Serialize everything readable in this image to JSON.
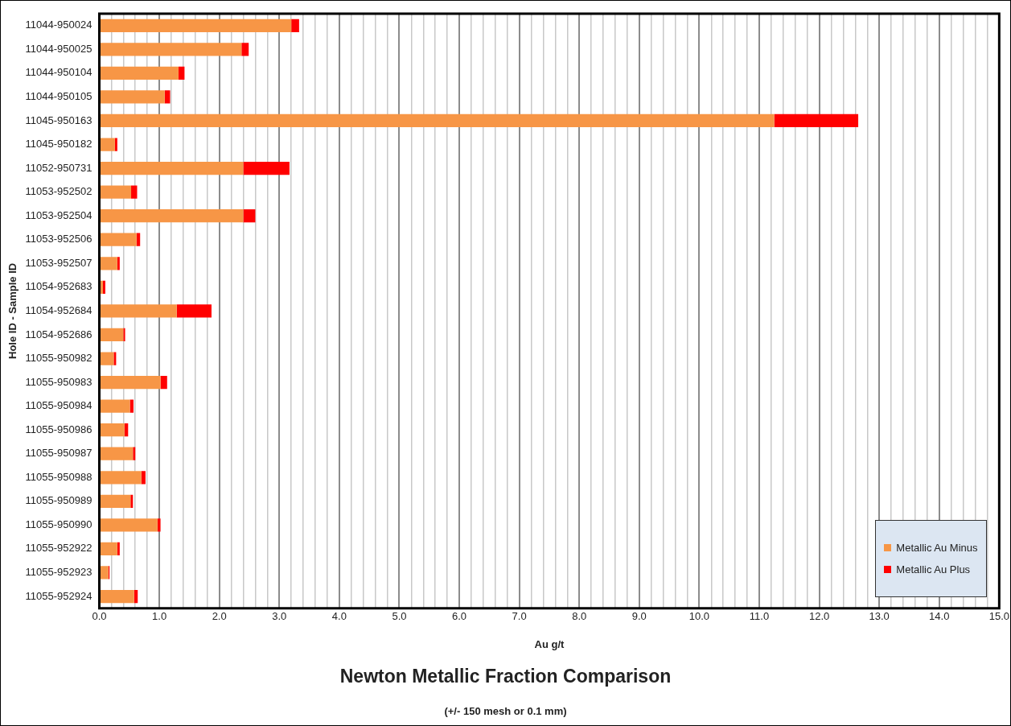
{
  "chart_data": {
    "type": "bar",
    "orientation": "horizontal",
    "stacked": true,
    "title": "Newton Metallic Fraction Comparison",
    "subtitle": "(+/- 150 mesh or 0.1 mm)",
    "xlabel": "Au g/t",
    "ylabel": "Hole ID - Sample ID",
    "categories": [
      "11044-950024",
      "11044-950025",
      "11044-950104",
      "11044-950105",
      "11045-950163",
      "11045-950182",
      "11052-950731",
      "11053-952502",
      "11053-952504",
      "11053-952506",
      "11053-952507",
      "11054-952683",
      "11054-952684",
      "11054-952686",
      "11055-950982",
      "11055-950983",
      "11055-950984",
      "11055-950986",
      "11055-950987",
      "11055-950988",
      "11055-950989",
      "11055-950990",
      "11055-952922",
      "11055-952923",
      "11055-952924"
    ],
    "series": [
      {
        "name": "Metallic Au Minus",
        "color": "#f79646",
        "values": [
          3.2,
          2.37,
          1.32,
          1.09,
          11.25,
          0.26,
          2.4,
          0.53,
          2.4,
          0.62,
          0.3,
          0.06,
          1.29,
          0.4,
          0.24,
          1.02,
          0.51,
          0.42,
          0.56,
          0.7,
          0.52,
          0.97,
          0.3,
          0.15,
          0.58
        ]
      },
      {
        "name": "Metallic Au Plus",
        "color": "#ff0000",
        "values": [
          0.13,
          0.12,
          0.1,
          0.09,
          1.4,
          0.04,
          0.77,
          0.1,
          0.2,
          0.06,
          0.04,
          0.04,
          0.58,
          0.03,
          0.04,
          0.11,
          0.06,
          0.06,
          0.04,
          0.07,
          0.04,
          0.05,
          0.04,
          0.02,
          0.06
        ]
      }
    ],
    "xlim": [
      0,
      15
    ],
    "xticks": [
      {
        "value": 0,
        "label": "0.0"
      },
      {
        "value": 0.2,
        "label": null
      },
      {
        "value": 0.4,
        "label": null
      },
      {
        "value": 0.6,
        "label": null
      },
      {
        "value": 0.8,
        "label": null
      },
      {
        "value": 1,
        "label": "1.0"
      },
      {
        "value": 1.2,
        "label": null
      },
      {
        "value": 1.4,
        "label": null
      },
      {
        "value": 1.6,
        "label": null
      },
      {
        "value": 1.8,
        "label": null
      },
      {
        "value": 2,
        "label": "2.0"
      },
      {
        "value": 2.2,
        "label": null
      },
      {
        "value": 2.4,
        "label": null
      },
      {
        "value": 2.6,
        "label": null
      },
      {
        "value": 2.8,
        "label": null
      },
      {
        "value": 3,
        "label": "3.0"
      },
      {
        "value": 3.2,
        "label": null
      },
      {
        "value": 3.4,
        "label": null
      },
      {
        "value": 3.6,
        "label": null
      },
      {
        "value": 3.8,
        "label": null
      },
      {
        "value": 4,
        "label": "4.0"
      },
      {
        "value": 4.2,
        "label": null
      },
      {
        "value": 4.4,
        "label": null
      },
      {
        "value": 4.6,
        "label": null
      },
      {
        "value": 4.8,
        "label": null
      },
      {
        "value": 5,
        "label": "5.0"
      },
      {
        "value": 5.2,
        "label": null
      },
      {
        "value": 5.4,
        "label": null
      },
      {
        "value": 5.6,
        "label": null
      },
      {
        "value": 5.8,
        "label": null
      },
      {
        "value": 6,
        "label": "6.0"
      },
      {
        "value": 6.2,
        "label": null
      },
      {
        "value": 6.4,
        "label": null
      },
      {
        "value": 6.6,
        "label": null
      },
      {
        "value": 6.8,
        "label": null
      },
      {
        "value": 7,
        "label": "7.0"
      },
      {
        "value": 7.2,
        "label": null
      },
      {
        "value": 7.4,
        "label": null
      },
      {
        "value": 7.6,
        "label": null
      },
      {
        "value": 7.8,
        "label": null
      },
      {
        "value": 8,
        "label": "8.0"
      },
      {
        "value": 8.2,
        "label": null
      },
      {
        "value": 8.4,
        "label": null
      },
      {
        "value": 8.6,
        "label": null
      },
      {
        "value": 8.8,
        "label": null
      },
      {
        "value": 9,
        "label": "9.0"
      },
      {
        "value": 9.2,
        "label": null
      },
      {
        "value": 9.4,
        "label": null
      },
      {
        "value": 9.6,
        "label": null
      },
      {
        "value": 9.8,
        "label": null
      },
      {
        "value": 10,
        "label": "10.0"
      },
      {
        "value": 10.2,
        "label": null
      },
      {
        "value": 10.4,
        "label": null
      },
      {
        "value": 10.6,
        "label": null
      },
      {
        "value": 10.8,
        "label": null
      },
      {
        "value": 11,
        "label": "11.0"
      },
      {
        "value": 11.2,
        "label": null
      },
      {
        "value": 11.4,
        "label": null
      },
      {
        "value": 11.6,
        "label": null
      },
      {
        "value": 11.8,
        "label": null
      },
      {
        "value": 12,
        "label": "12.0"
      },
      {
        "value": 12.2,
        "label": null
      },
      {
        "value": 12.4,
        "label": null
      },
      {
        "value": 12.6,
        "label": null
      },
      {
        "value": 12.8,
        "label": null
      },
      {
        "value": 13,
        "label": "13.0"
      },
      {
        "value": 13.2,
        "label": null
      },
      {
        "value": 13.4,
        "label": null
      },
      {
        "value": 13.6,
        "label": null
      },
      {
        "value": 13.8,
        "label": null
      },
      {
        "value": 14,
        "label": "14.0"
      },
      {
        "value": 14.2,
        "label": null
      },
      {
        "value": 14.4,
        "label": null
      },
      {
        "value": 14.6,
        "label": null
      },
      {
        "value": 14.8,
        "label": null
      },
      {
        "value": 15,
        "label": "15.0"
      }
    ],
    "grid": "x",
    "legend": "bottom right"
  }
}
